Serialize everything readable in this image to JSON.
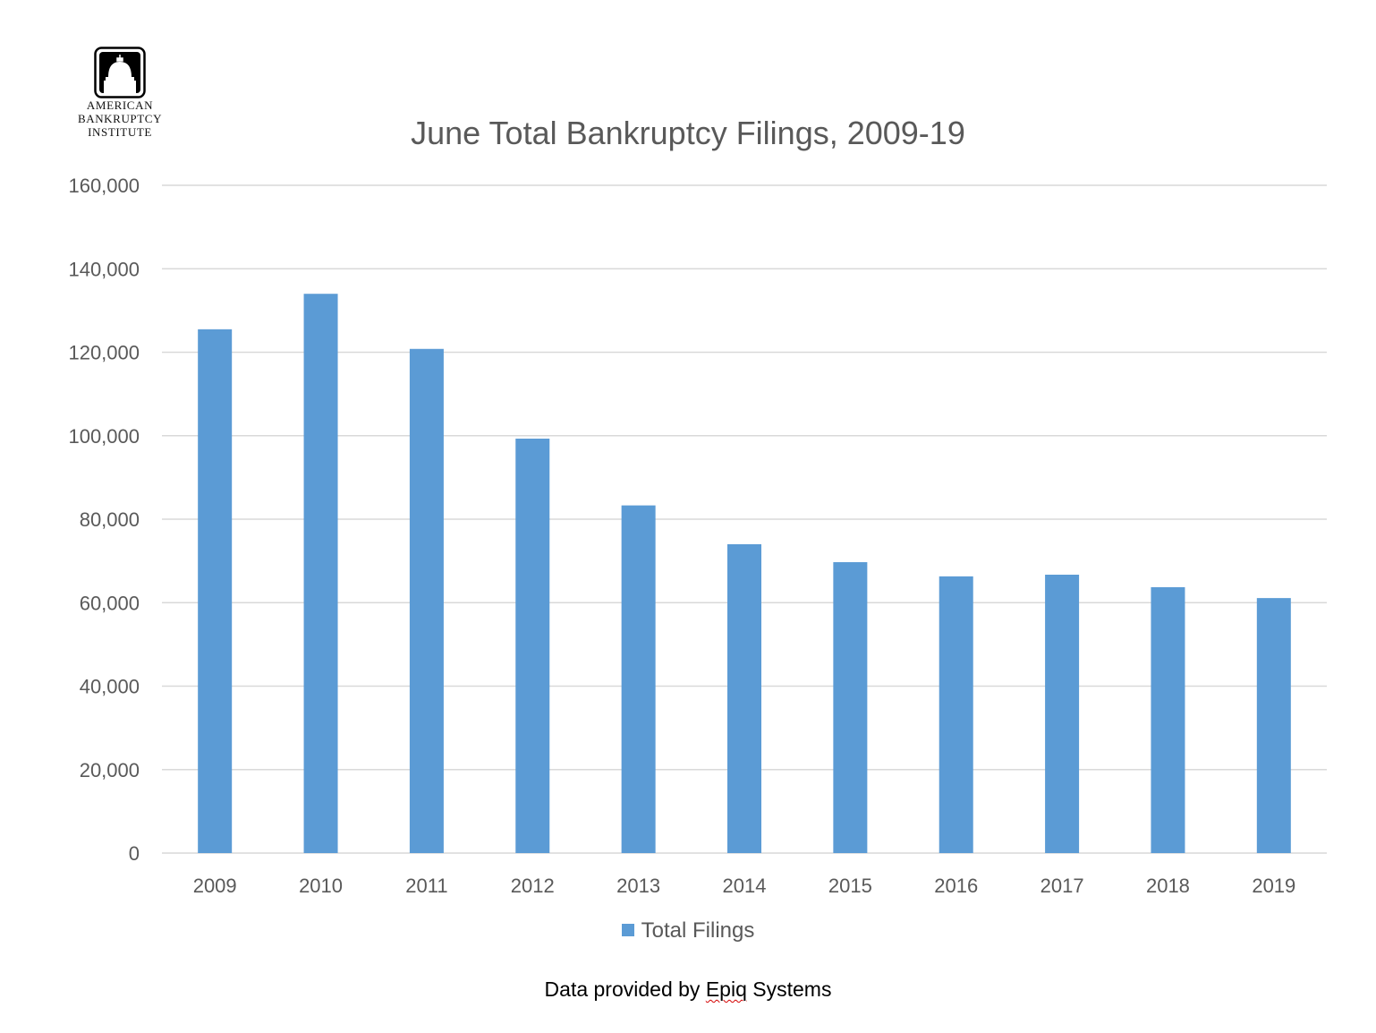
{
  "logo": {
    "lines": [
      "American",
      "Bankruptcy",
      "Institute"
    ],
    "icon": "capitol-dome-icon"
  },
  "footer": {
    "prefix": "Data provided by ",
    "underlined": "Epiq",
    "suffix": " Systems"
  },
  "colors": {
    "bar": "#5B9BD5",
    "grid": "#d9d9d9",
    "text": "#595959"
  },
  "chart_data": {
    "type": "bar",
    "title": "June Total Bankruptcy Filings, 2009-19",
    "xlabel": "",
    "ylabel": "",
    "categories": [
      "2009",
      "2010",
      "2011",
      "2012",
      "2013",
      "2014",
      "2015",
      "2016",
      "2017",
      "2018",
      "2019"
    ],
    "series": [
      {
        "name": "Total Filings",
        "values": [
          125500,
          134000,
          120800,
          99300,
          83300,
          74000,
          69700,
          66300,
          66700,
          63700,
          61100
        ]
      }
    ],
    "ylim": [
      0,
      160000
    ],
    "yticks": [
      0,
      20000,
      40000,
      60000,
      80000,
      100000,
      120000,
      140000,
      160000
    ],
    "ytick_labels": [
      "0",
      "20,000",
      "40,000",
      "60,000",
      "80,000",
      "100,000",
      "120,000",
      "140,000",
      "160,000"
    ],
    "grid": true,
    "legend_position": "bottom"
  }
}
